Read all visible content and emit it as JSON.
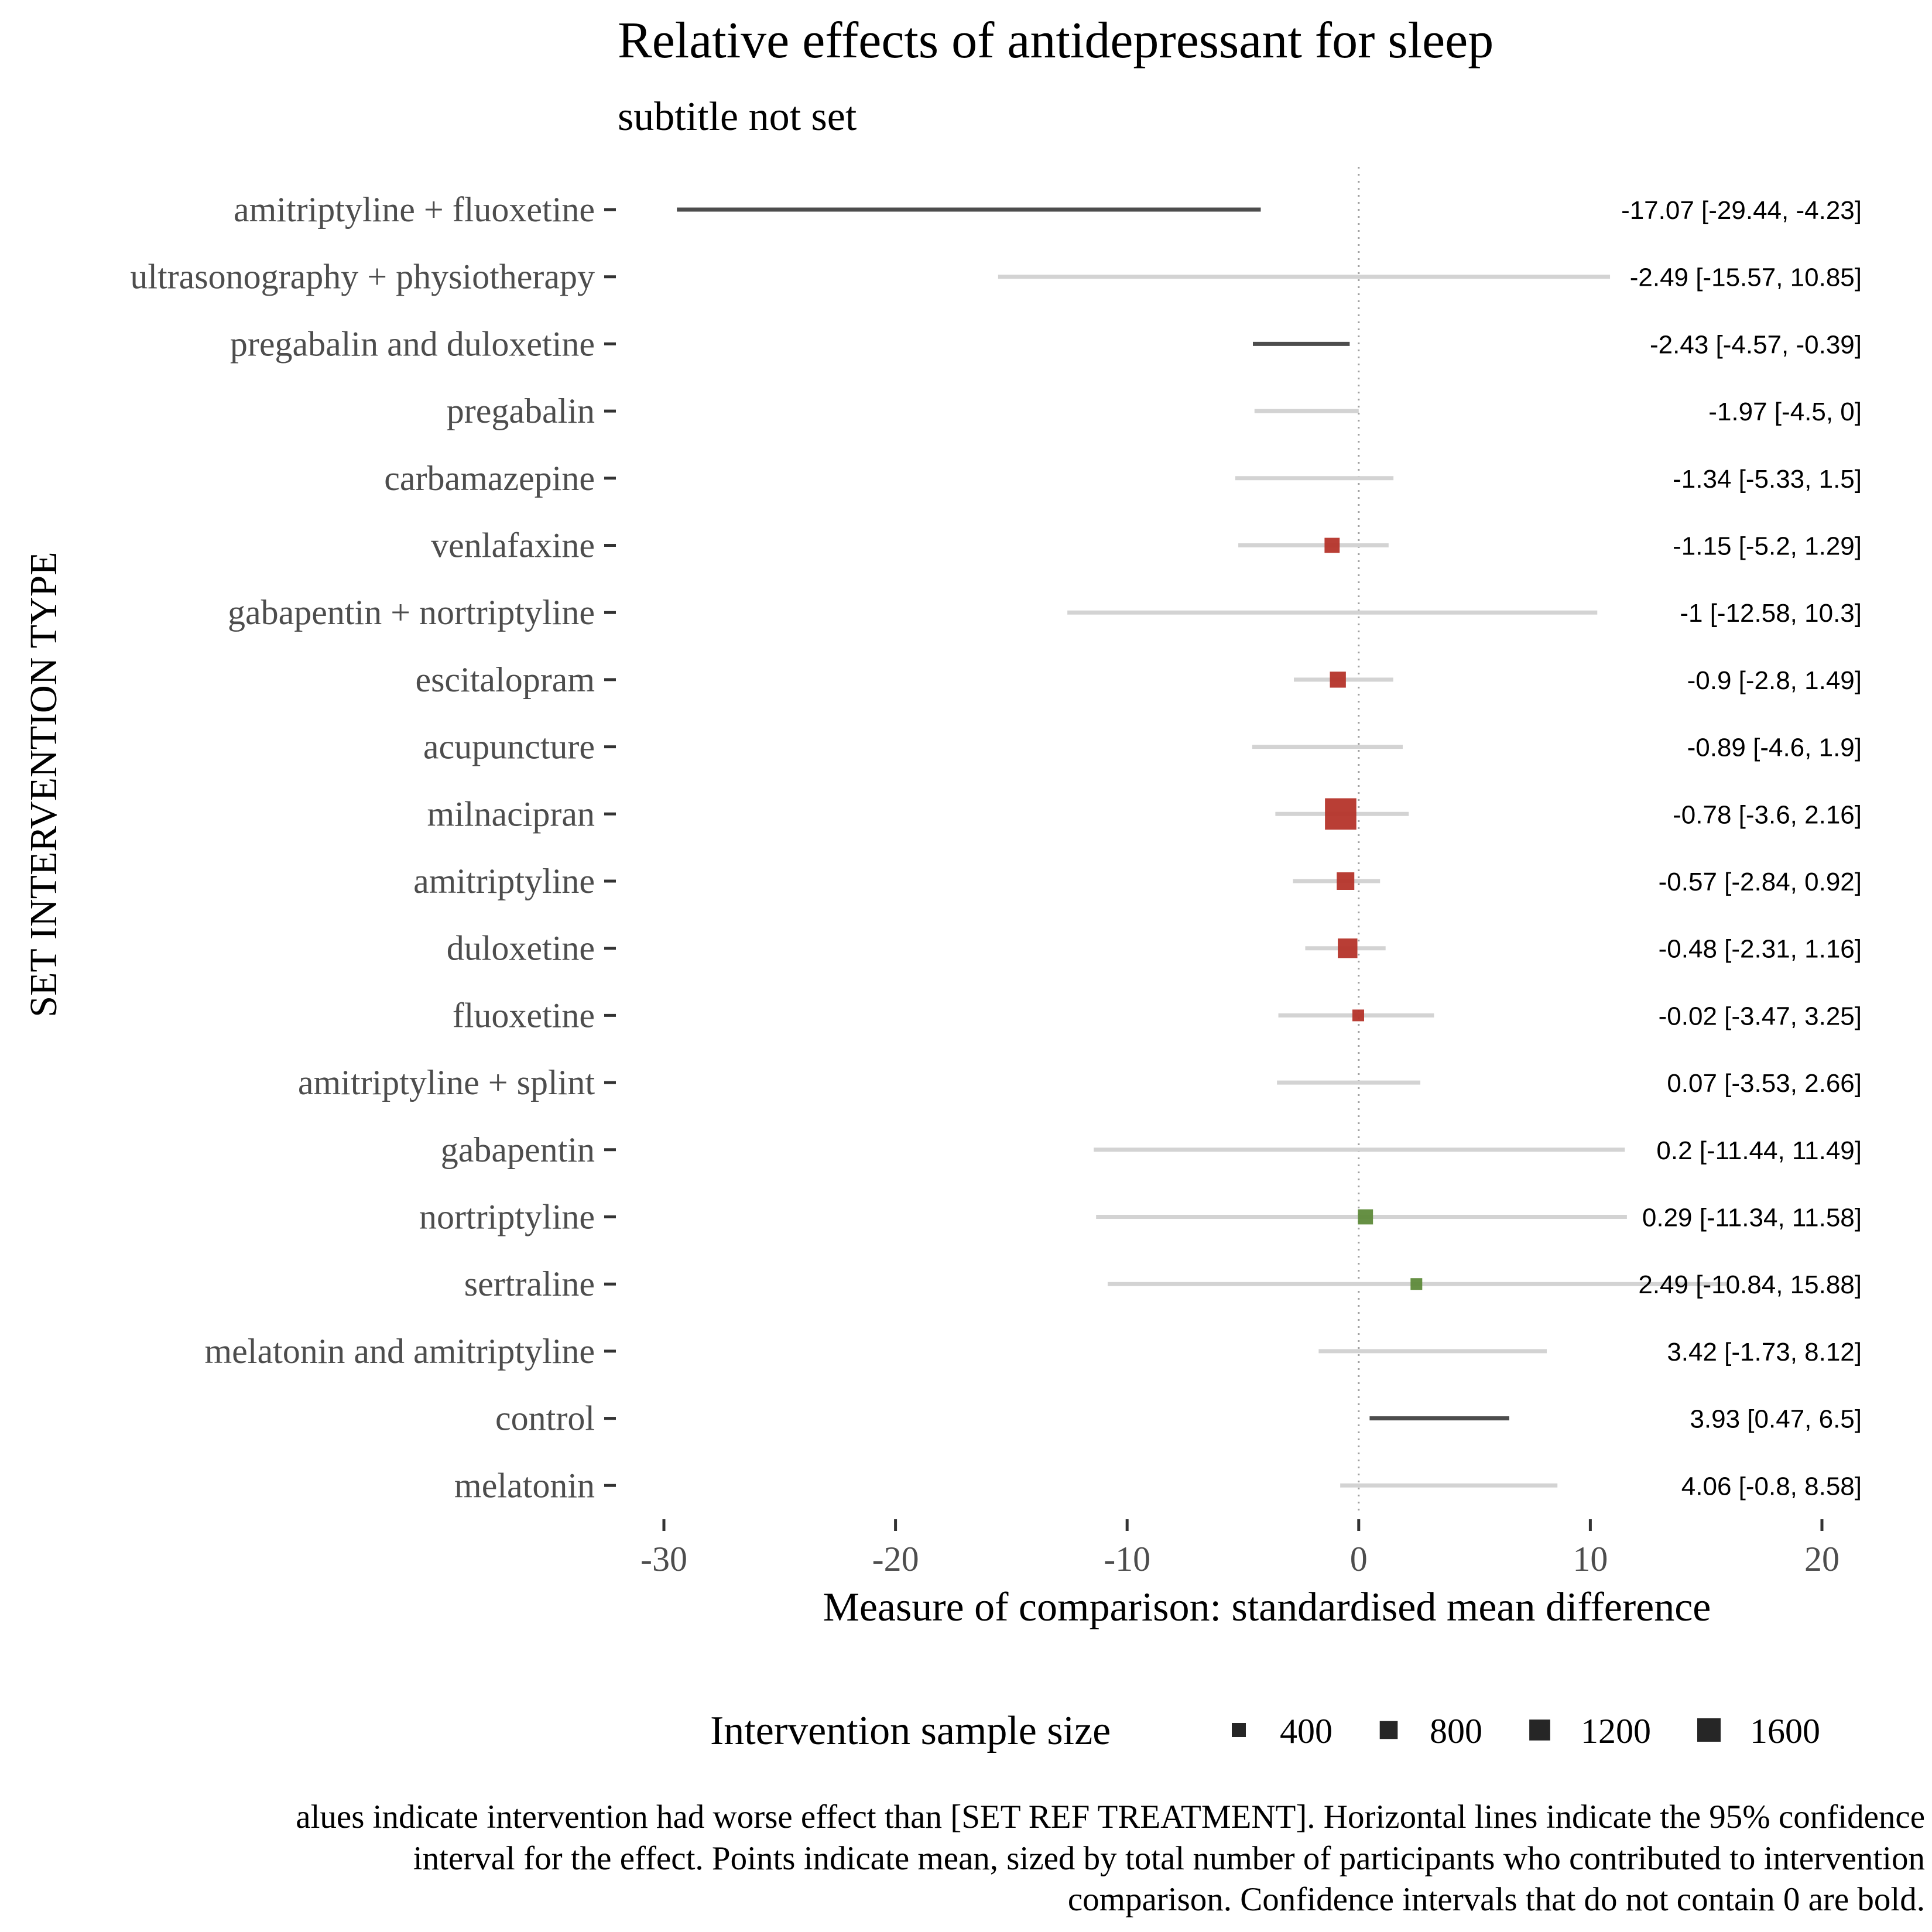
{
  "chart_data": {
    "type": "forest",
    "title": "Relative effects of antidepressant for sleep",
    "subtitle": "subtitle not set",
    "xlabel": "Measure of comparison: standardised mean difference",
    "ylabel": "SET INTERVENTION TYPE",
    "xlim": [
      -30,
      20
    ],
    "xticks": [
      -30,
      -20,
      -10,
      0,
      10,
      20
    ],
    "xtick_labels": [
      "-30",
      "-20",
      "-10",
      "0",
      "10",
      "20"
    ],
    "reference_line": 0,
    "rows": [
      {
        "label": "amitriptyline + fluoxetine",
        "mean": -17.07,
        "lower": -29.44,
        "upper": -4.23,
        "ci_text": "-17.07 [-29.44, -4.23]",
        "bold": true,
        "n": null
      },
      {
        "label": "ultrasonography + physiotherapy",
        "mean": -2.49,
        "lower": -15.57,
        "upper": 10.85,
        "ci_text": "-2.49 [-15.57, 10.85]",
        "bold": false,
        "n": null
      },
      {
        "label": "pregabalin and duloxetine",
        "mean": -2.43,
        "lower": -4.57,
        "upper": -0.39,
        "ci_text": "-2.43 [-4.57, -0.39]",
        "bold": true,
        "n": null
      },
      {
        "label": "pregabalin",
        "mean": -1.97,
        "lower": -4.5,
        "upper": 0,
        "ci_text": "-1.97 [-4.5, 0]",
        "bold": false,
        "n": null
      },
      {
        "label": "carbamazepine",
        "mean": -1.34,
        "lower": -5.33,
        "upper": 1.5,
        "ci_text": "-1.34 [-5.33, 1.5]",
        "bold": false,
        "n": null
      },
      {
        "label": "venlafaxine",
        "mean": -1.15,
        "lower": -5.2,
        "upper": 1.29,
        "ci_text": "-1.15 [-5.2, 1.29]",
        "bold": false,
        "n": 250
      },
      {
        "label": "gabapentin + nortriptyline",
        "mean": -1,
        "lower": -12.58,
        "upper": 10.3,
        "ci_text": "-1 [-12.58, 10.3]",
        "bold": false,
        "n": null
      },
      {
        "label": "escitalopram",
        "mean": -0.9,
        "lower": -2.8,
        "upper": 1.49,
        "ci_text": "-0.9 [-2.8, 1.49]",
        "bold": false,
        "n": 300
      },
      {
        "label": "acupuncture",
        "mean": -0.89,
        "lower": -4.6,
        "upper": 1.9,
        "ci_text": "-0.89 [-4.6, 1.9]",
        "bold": false,
        "n": null
      },
      {
        "label": "milnacipran",
        "mean": -0.78,
        "lower": -3.6,
        "upper": 2.16,
        "ci_text": "-0.78 [-3.6, 2.16]",
        "bold": false,
        "n": 1900
      },
      {
        "label": "amitriptyline",
        "mean": -0.57,
        "lower": -2.84,
        "upper": 0.92,
        "ci_text": "-0.57 [-2.84, 0.92]",
        "bold": false,
        "n": 400
      },
      {
        "label": "duloxetine",
        "mean": -0.48,
        "lower": -2.31,
        "upper": 1.16,
        "ci_text": "-0.48 [-2.31, 1.16]",
        "bold": false,
        "n": 550
      },
      {
        "label": "fluoxetine",
        "mean": -0.02,
        "lower": -3.47,
        "upper": 3.25,
        "ci_text": "-0.02 [-3.47, 3.25]",
        "bold": false,
        "n": 100
      },
      {
        "label": "amitriptyline + splint",
        "mean": 0.07,
        "lower": -3.53,
        "upper": 2.66,
        "ci_text": "0.07 [-3.53, 2.66]",
        "bold": false,
        "n": null
      },
      {
        "label": "gabapentin",
        "mean": 0.2,
        "lower": -11.44,
        "upper": 11.49,
        "ci_text": "0.2 [-11.44, 11.49]",
        "bold": false,
        "n": null
      },
      {
        "label": "nortriptyline",
        "mean": 0.29,
        "lower": -11.34,
        "upper": 11.58,
        "ci_text": "0.29 [-11.34, 11.58]",
        "bold": false,
        "n": 250
      },
      {
        "label": "sertraline",
        "mean": 2.49,
        "lower": -10.84,
        "upper": 15.88,
        "ci_text": "2.49 [-10.84, 15.88]",
        "bold": false,
        "n": 100
      },
      {
        "label": "melatonin and amitriptyline",
        "mean": 3.42,
        "lower": -1.73,
        "upper": 8.12,
        "ci_text": "3.42 [-1.73, 8.12]",
        "bold": false,
        "n": null
      },
      {
        "label": "control",
        "mean": 3.93,
        "lower": 0.47,
        "upper": 6.5,
        "ci_text": "3.93 [0.47, 6.5]",
        "bold": true,
        "n": null
      },
      {
        "label": "melatonin",
        "mean": 4.06,
        "lower": -0.8,
        "upper": 8.58,
        "ci_text": "4.06 [-0.8, 8.58]",
        "bold": false,
        "n": null
      }
    ],
    "legend": {
      "title": "Intervention sample size",
      "placement": "bottom",
      "entries": [
        {
          "label": "400",
          "value": 400
        },
        {
          "label": "800",
          "value": 800
        },
        {
          "label": "1200",
          "value": 1200
        },
        {
          "label": "1600",
          "value": 1600
        }
      ]
    },
    "caption_lines": [
      "alues indicate intervention had worse effect than [SET REF TREATMENT]. Horizontal lines indicate the 95% confidence",
      "interval for the effect. Points indicate mean, sized by total number of participants who contributed to intervention",
      "comparison. Confidence intervals that do not contain 0 are bold."
    ],
    "colors": {
      "ci_normal": "#d3d3d3",
      "ci_bold": "#4d4d4d",
      "point_negative": "#b5342a",
      "point_positive": "#5e8a3a",
      "legend_marker": "#262626",
      "reference_line": "#a0a0a0",
      "text": "#000000",
      "tick_text": "#4d4d4d"
    }
  }
}
